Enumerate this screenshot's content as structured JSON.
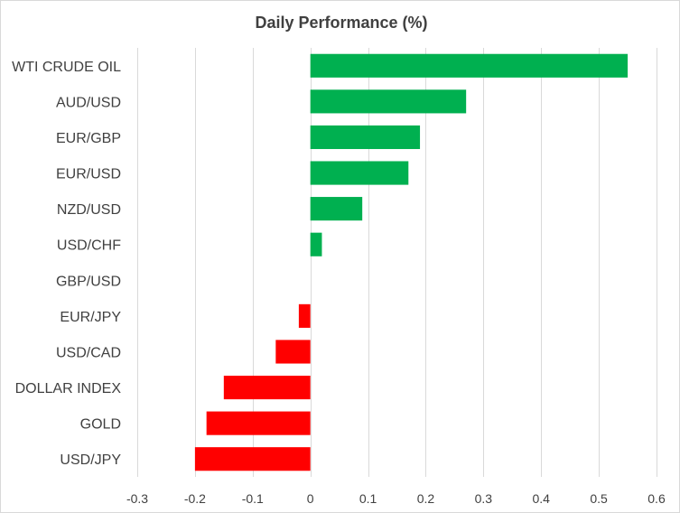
{
  "chart_data": {
    "type": "bar",
    "orientation": "horizontal",
    "title": "Daily Performance  (%)",
    "categories": [
      "WTI CRUDE OIL",
      "AUD/USD",
      "EUR/GBP",
      "EUR/USD",
      "NZD/USD",
      "USD/CHF",
      "GBP/USD",
      "EUR/JPY",
      "USD/CAD",
      "DOLLAR INDEX",
      "GOLD",
      "USD/JPY"
    ],
    "values": [
      0.55,
      0.27,
      0.19,
      0.17,
      0.09,
      0.02,
      0.0,
      -0.02,
      -0.06,
      -0.15,
      -0.18,
      -0.2
    ],
    "xlim": [
      -0.3,
      0.6
    ],
    "xticks": [
      "-0.3",
      "-0.2",
      "-0.1",
      "0",
      "0.1",
      "0.2",
      "0.3",
      "0.4",
      "0.5",
      "0.6"
    ],
    "xtick_values": [
      -0.3,
      -0.2,
      -0.1,
      0,
      0.1,
      0.2,
      0.3,
      0.4,
      0.5,
      0.6
    ],
    "xlabel": "",
    "ylabel": "",
    "grid": "vertical",
    "legend": "none",
    "colors": {
      "positive": "#00b050",
      "negative": "#ff0000",
      "grid": "#d9d9d9",
      "text": "#404040"
    }
  }
}
